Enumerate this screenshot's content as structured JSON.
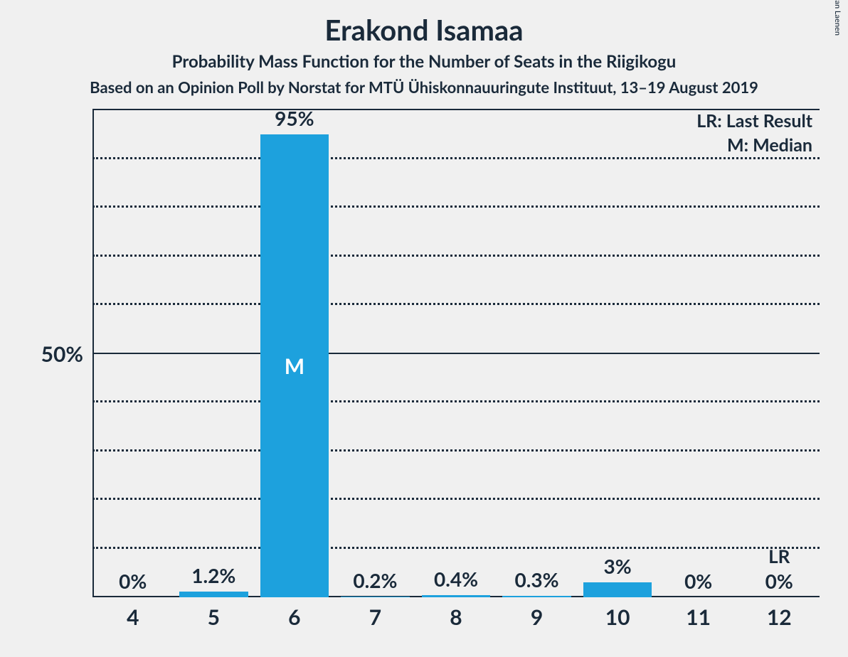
{
  "copyright": "© 2020 Filip van Laenen",
  "title": "Erakond Isamaa",
  "subtitle": "Probability Mass Function for the Number of Seats in the Riigikogu",
  "source": "Based on an Opinion Poll by Norstat for MTÜ Ühiskonnauuringute Instituut, 13–19 August 2019",
  "chart": {
    "type": "bar",
    "categories": [
      "4",
      "5",
      "6",
      "7",
      "8",
      "9",
      "10",
      "11",
      "12"
    ],
    "values": [
      0,
      1.2,
      95,
      0.2,
      0.4,
      0.3,
      3,
      0,
      0
    ],
    "value_labels": [
      "0%",
      "1.2%",
      "95%",
      "0.2%",
      "0.4%",
      "0.3%",
      "3%",
      "0%",
      "0%"
    ],
    "bar_color": "#1da1dd",
    "background_color": "#f0f0f0",
    "axis_color": "#1a2a3a",
    "grid_color": "#1a2a3a",
    "ylim": [
      0,
      100
    ],
    "ytick_major": 50,
    "ytick_minor": 10,
    "y_label_text": "50%",
    "bar_width_ratio": 0.85,
    "median_index": 2,
    "median_label": "M",
    "last_result_index": 8,
    "last_result_label": "LR",
    "legend_lr": "LR: Last Result",
    "legend_m": "M: Median",
    "title_fontsize": 40,
    "subtitle_fontsize": 24,
    "source_fontsize": 22,
    "label_fontsize": 30,
    "value_label_fontsize": 28
  }
}
